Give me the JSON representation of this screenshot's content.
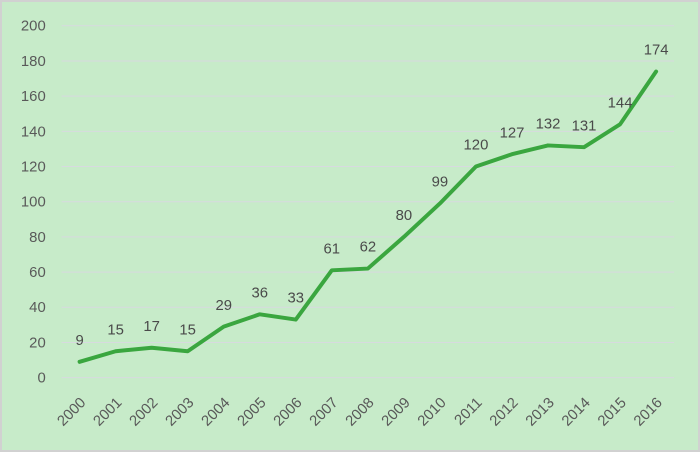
{
  "chart_data": {
    "type": "line",
    "title": "",
    "xlabel": "",
    "ylabel": "",
    "categories": [
      "2000",
      "2001",
      "2002",
      "2003",
      "2004",
      "2005",
      "2006",
      "2007",
      "2008",
      "2009",
      "2010",
      "2011",
      "2012",
      "2013",
      "2014",
      "2015",
      "2016"
    ],
    "series": [
      {
        "name": "values",
        "values": [
          9,
          15,
          17,
          15,
          29,
          36,
          33,
          61,
          62,
          80,
          99,
          120,
          127,
          132,
          131,
          144,
          174
        ]
      }
    ],
    "ylim": [
      0,
      200
    ],
    "ytick_step": 20,
    "ytick_labels": [
      "0",
      "20",
      "40",
      "60",
      "80",
      "100",
      "120",
      "140",
      "160",
      "180",
      "200"
    ],
    "grid": true,
    "legend": false,
    "data_labels": true,
    "x_label_rotation_deg": -45,
    "colors": {
      "background": "#c7ebc9",
      "frame_border": "#d1d1d1",
      "line": "#3aa63f",
      "gridline": "#d7dadf",
      "tick_text": "#595959",
      "data_label_text": "#4a4a4a"
    }
  }
}
